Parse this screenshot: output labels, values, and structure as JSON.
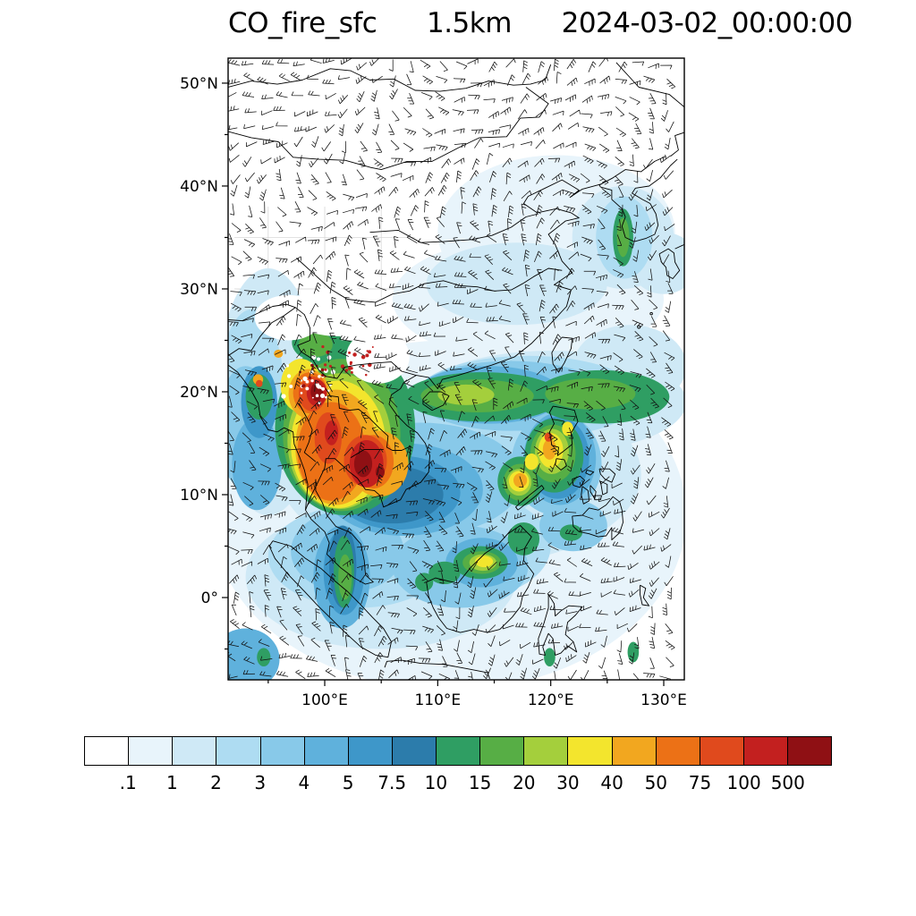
{
  "title": {
    "variable": "CO_fire_sfc",
    "level": "1.5km",
    "datetime": "2024-03-02_00:00:00"
  },
  "map": {
    "overlay": "wind-barbs",
    "y_axis_ticks": [
      {
        "label": "50°N",
        "value": 50
      },
      {
        "label": "40°N",
        "value": 40
      },
      {
        "label": "30°N",
        "value": 30
      },
      {
        "label": "20°N",
        "value": 20
      },
      {
        "label": "10°N",
        "value": 10
      },
      {
        "label": "0°",
        "value": 0
      }
    ],
    "x_axis_ticks": [
      {
        "label": "100°E",
        "value": 100
      },
      {
        "label": "110°E",
        "value": 110
      },
      {
        "label": "120°E",
        "value": 120
      },
      {
        "label": "130°E",
        "value": 130
      }
    ]
  },
  "colorbar": {
    "tick_labels": [
      ".1",
      "1",
      "2",
      "3",
      "4",
      "5",
      "7.5",
      "10",
      "15",
      "20",
      "30",
      "40",
      "50",
      "75",
      "100",
      "500"
    ],
    "colors": [
      "#ffffff",
      "#e8f4fb",
      "#cfe9f6",
      "#aedcf2",
      "#88c9e9",
      "#5fb1dc",
      "#3e97c9",
      "#2c7cab",
      "#2f9e63",
      "#57ae45",
      "#a4cf3c",
      "#f3e52d",
      "#f2a71f",
      "#ec7116",
      "#e04a1d",
      "#c3201f",
      "#8f1014"
    ]
  },
  "chart_data": {
    "type": "heatmap",
    "subtype": "filled-contour-map-with-wind-barbs",
    "title": "CO_fire_sfc 1.5km 2024-03-02_00:00:00",
    "levels": [
      0.1,
      1,
      2,
      3,
      4,
      5,
      7.5,
      10,
      15,
      20,
      30,
      40,
      50,
      75,
      100,
      500
    ],
    "extent": {
      "lon_range": [
        91.45,
        131.82
      ],
      "lat_range": [
        -8.0,
        52.43
      ]
    },
    "x_tick_lons": [
      100,
      110,
      120,
      130
    ],
    "y_tick_lats": [
      50,
      40,
      30,
      20,
      10,
      0
    ],
    "grid": false,
    "legend_position": "bottom-colorbar",
    "overlays": [
      "wind_barbs",
      "coastlines",
      "country_borders"
    ],
    "patch_format": "[center_lon_degE, center_lat_degN, radius_lon_deg, radius_lat_deg, colorbar_color_index]",
    "field_patches": [
      [
        120.5,
        35.5,
        10.5,
        7.5,
        1
      ],
      [
        118,
        29,
        12,
        6,
        1
      ],
      [
        111,
        8,
        21,
        17,
        1
      ],
      [
        95,
        20,
        4.5,
        12,
        2
      ],
      [
        112,
        12,
        16,
        9,
        2
      ],
      [
        120,
        19,
        12,
        5,
        2
      ],
      [
        105,
        2,
        12,
        7,
        2
      ],
      [
        126.4,
        35,
        4.5,
        5,
        2
      ],
      [
        130,
        32.5,
        3,
        3,
        2
      ],
      [
        117,
        30.5,
        8,
        4,
        2
      ],
      [
        127,
        22.5,
        5,
        4,
        2
      ],
      [
        93.5,
        19,
        3,
        9,
        3
      ],
      [
        109,
        13,
        11,
        7,
        3
      ],
      [
        118,
        19.5,
        10,
        4,
        3
      ],
      [
        103,
        4,
        8,
        5,
        3
      ],
      [
        126.5,
        35,
        2.5,
        4,
        3
      ],
      [
        113,
        5,
        7,
        5,
        3
      ],
      [
        93,
        16.5,
        2.5,
        6,
        4
      ],
      [
        108.5,
        11.5,
        9,
        5.5,
        4
      ],
      [
        116.5,
        19.6,
        8.5,
        3.4,
        4
      ],
      [
        102,
        4.5,
        5,
        4,
        4
      ],
      [
        112,
        3,
        6,
        4,
        4
      ],
      [
        120.5,
        13,
        4,
        5,
        4
      ],
      [
        122,
        7,
        3,
        2.5,
        4
      ],
      [
        93,
        -6,
        3,
        3,
        5
      ],
      [
        94,
        13,
        2.2,
        4.5,
        5
      ],
      [
        107,
        10.5,
        7,
        4.5,
        5
      ],
      [
        114.5,
        19.7,
        6.5,
        2.8,
        5
      ],
      [
        101.5,
        2,
        2.5,
        5,
        5
      ],
      [
        120.8,
        13.5,
        3.2,
        4.5,
        5
      ],
      [
        113.9,
        3.4,
        3.2,
        2.4,
        5
      ],
      [
        106.5,
        10.2,
        5.5,
        3.6,
        6
      ],
      [
        113.5,
        19.7,
        5,
        2.2,
        6
      ],
      [
        101.7,
        2.5,
        1.8,
        4.2,
        6
      ],
      [
        120.6,
        13.6,
        2.8,
        4,
        6
      ],
      [
        94.2,
        19,
        1.6,
        3.5,
        6
      ],
      [
        106,
        10,
        4.5,
        2.8,
        7
      ],
      [
        101.6,
        3,
        1.2,
        4,
        7
      ],
      [
        112.8,
        19.7,
        4,
        1.8,
        7
      ],
      [
        101.8,
        16.5,
        6.2,
        8.5,
        8
      ],
      [
        114,
        19.5,
        7,
        2.4,
        8
      ],
      [
        124.5,
        19.5,
        6,
        2.6,
        8
      ],
      [
        120.3,
        13.8,
        2.6,
        3.6,
        8
      ],
      [
        117.3,
        11.3,
        2,
        2.4,
        8
      ],
      [
        113.8,
        3.4,
        2.4,
        1.6,
        8
      ],
      [
        110.6,
        2.4,
        1.4,
        1.1,
        8
      ],
      [
        117.6,
        5.7,
        1.4,
        1.6,
        8
      ],
      [
        101.7,
        2.5,
        0.9,
        3.5,
        8
      ],
      [
        126.4,
        35,
        0.9,
        2.8,
        8
      ],
      [
        94.2,
        19.5,
        1.2,
        2.2,
        8
      ],
      [
        99.3,
        24.8,
        2.2,
        1.8,
        8
      ],
      [
        121.8,
        6.3,
        1,
        0.8,
        8
      ],
      [
        119.9,
        -5.8,
        0.5,
        0.9,
        8
      ],
      [
        127.3,
        -5.3,
        0.5,
        1,
        8
      ],
      [
        94.6,
        -5.8,
        0.6,
        0.9,
        8
      ],
      [
        108.8,
        1.5,
        0.8,
        0.9,
        8
      ],
      [
        101.5,
        15.8,
        5.2,
        7.4,
        9
      ],
      [
        113.5,
        19.6,
        5,
        1.6,
        9
      ],
      [
        123.5,
        19.8,
        4,
        1.5,
        9
      ],
      [
        120.2,
        14,
        2,
        2.8,
        9
      ],
      [
        117.3,
        11.2,
        1.5,
        1.8,
        9
      ],
      [
        113.9,
        3.4,
        1.7,
        1.1,
        9
      ],
      [
        101.8,
        2,
        0.6,
        2.2,
        9
      ],
      [
        126.4,
        35,
        0.55,
        1.9,
        9
      ],
      [
        99.2,
        24.6,
        1.5,
        1.2,
        9
      ],
      [
        101.3,
        15.2,
        4.6,
        6.6,
        10
      ],
      [
        120.1,
        14.2,
        1.5,
        2.2,
        10
      ],
      [
        117.2,
        11.2,
        1.1,
        1.3,
        10
      ],
      [
        114,
        3.4,
        1.2,
        0.8,
        10
      ],
      [
        112.5,
        19.7,
        2.5,
        1,
        10
      ],
      [
        101.2,
        14.9,
        4.2,
        6.2,
        11
      ],
      [
        97.9,
        20.6,
        1.8,
        2.6,
        11
      ],
      [
        120,
        14.3,
        1.1,
        1.7,
        11
      ],
      [
        117.2,
        11.3,
        0.9,
        1,
        11
      ],
      [
        118.3,
        13.2,
        0.6,
        0.8,
        11
      ],
      [
        114.1,
        3.5,
        0.8,
        0.55,
        11
      ],
      [
        121.5,
        16.4,
        0.5,
        0.7,
        11
      ],
      [
        101,
        14.6,
        3.6,
        5.6,
        12
      ],
      [
        98.6,
        19.8,
        1.8,
        2.4,
        12
      ],
      [
        104.8,
        13,
        2.6,
        3.2,
        12
      ],
      [
        117.3,
        11.4,
        0.6,
        0.7,
        12
      ],
      [
        119.9,
        14.4,
        0.6,
        1,
        12
      ],
      [
        94.1,
        21.2,
        0.45,
        0.5,
        12
      ],
      [
        95.9,
        23.7,
        0.4,
        0.4,
        12
      ],
      [
        100.6,
        14.2,
        3,
        4.8,
        13
      ],
      [
        98.7,
        19.9,
        1.5,
        2,
        13
      ],
      [
        104.3,
        13.2,
        1.8,
        2.6,
        13
      ],
      [
        98.9,
        19.8,
        1.2,
        1.7,
        14
      ],
      [
        103.6,
        13.3,
        1.9,
        2.5,
        14
      ],
      [
        100.3,
        15.5,
        1.2,
        2.5,
        14
      ],
      [
        94.2,
        20.8,
        0.3,
        0.35,
        14
      ],
      [
        119.8,
        15.6,
        0.35,
        0.45,
        14
      ],
      [
        99.3,
        19.9,
        0.9,
        1.3,
        15
      ],
      [
        103.7,
        13,
        1.5,
        2.3,
        15
      ],
      [
        100.6,
        16,
        0.6,
        1.2,
        15
      ],
      [
        99.3,
        20,
        0.55,
        0.9,
        16
      ],
      [
        103.4,
        13,
        0.8,
        1.3,
        16
      ],
      [
        104.9,
        12.2,
        0.4,
        0.6,
        16
      ],
      [
        104.7,
        23.4,
        2.8,
        2.6,
        0
      ],
      [
        101.2,
        27.8,
        4.5,
        2.4,
        0
      ],
      [
        96.8,
        27.2,
        3,
        2.2,
        0
      ]
    ]
  }
}
